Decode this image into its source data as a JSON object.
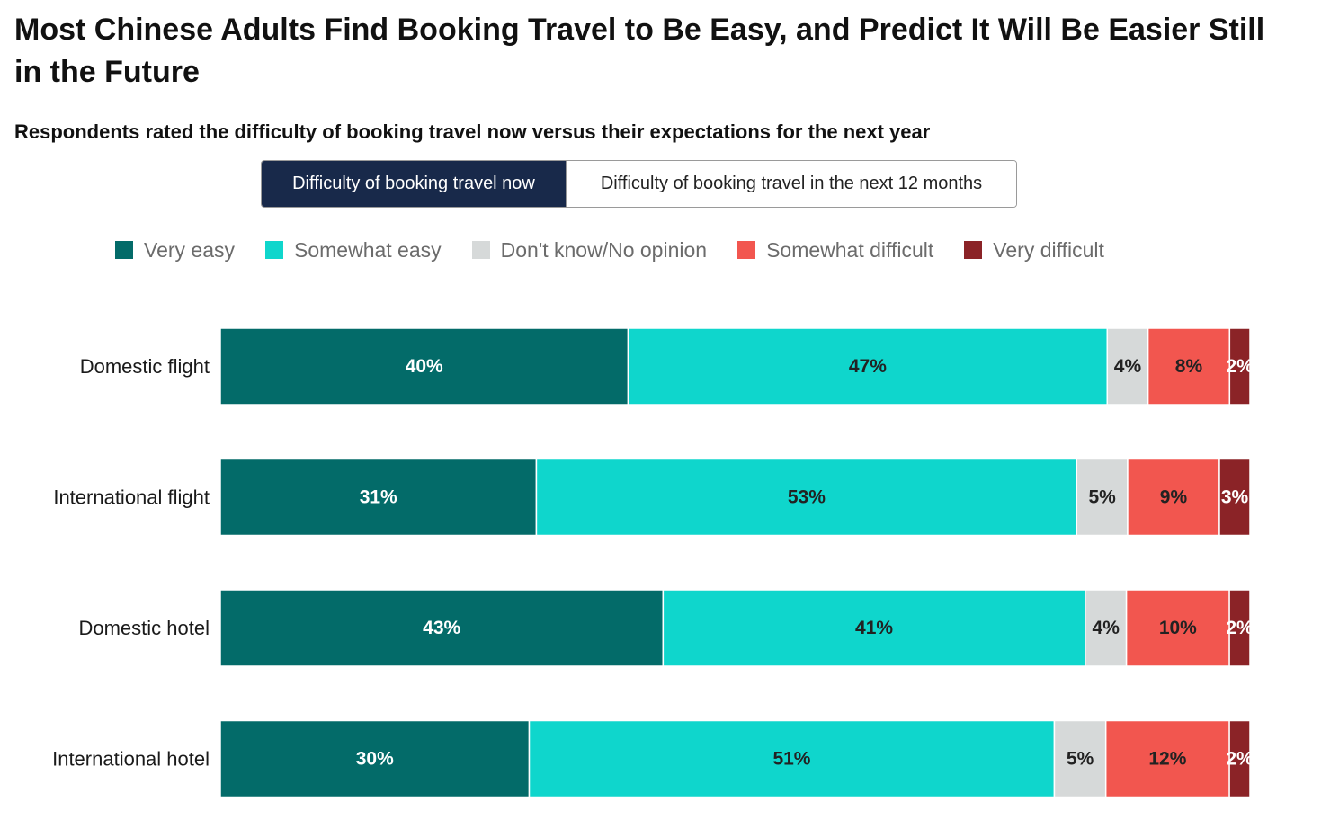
{
  "title": "Most Chinese Adults Find Booking Travel to Be Easy, and Predict It Will Be Easier Still in the Future",
  "subtitle": "Respondents rated the difficulty of booking travel now versus their expectations for the next year",
  "toggle": {
    "options": [
      {
        "label": "Difficulty of booking travel now",
        "active": true
      },
      {
        "label": "Difficulty of booking travel in the next 12 months",
        "active": false
      }
    ]
  },
  "chart_data": {
    "type": "bar",
    "orientation": "horizontal",
    "stacked": true,
    "percent": true,
    "categories": [
      "Domestic flight",
      "International flight",
      "Domestic hotel",
      "International hotel"
    ],
    "series": [
      {
        "name": "Very easy",
        "color": "#036b69",
        "label_color": "#ffffff",
        "values": [
          40,
          31,
          43,
          30
        ]
      },
      {
        "name": "Somewhat easy",
        "color": "#0fd6cc",
        "label_color": "#222222",
        "values": [
          47,
          53,
          41,
          51
        ]
      },
      {
        "name": "Don't know/No opinion",
        "color": "#d6d9d9",
        "label_color": "#222222",
        "values": [
          4,
          5,
          4,
          5
        ]
      },
      {
        "name": "Somewhat difficult",
        "color": "#f2564f",
        "label_color": "#222222",
        "values": [
          8,
          9,
          10,
          12
        ]
      },
      {
        "name": "Very difficult",
        "color": "#8b2327",
        "label_color": "#ffffff",
        "values": [
          2,
          3,
          2,
          2
        ]
      }
    ],
    "value_suffix": "%",
    "legend_position": "top",
    "grid": false
  }
}
